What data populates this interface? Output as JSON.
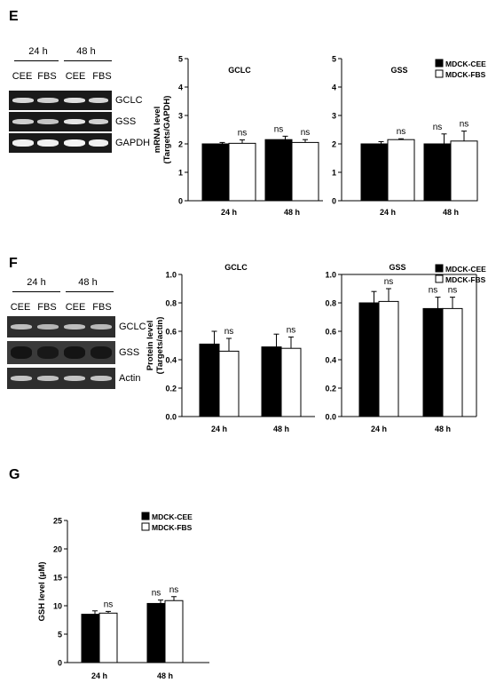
{
  "panels": {
    "E": {
      "letter": "E",
      "blot": {
        "times": [
          "24 h",
          "48 h"
        ],
        "conditions": [
          "CEE",
          "FBS",
          "CEE",
          "FBS"
        ],
        "rows": [
          "GCLC",
          "GSS",
          "GAPDH"
        ]
      }
    },
    "F": {
      "letter": "F",
      "blot": {
        "times": [
          "24 h",
          "48 h"
        ],
        "conditions": [
          "CEE",
          "FBS",
          "CEE",
          "FBS"
        ],
        "rows": [
          "GCLC",
          "GSS",
          "Actin"
        ]
      }
    },
    "G": {
      "letter": "G"
    }
  },
  "legend": {
    "cee": "MDCK-CEE",
    "fbs": "MDCK-FBS",
    "cee_color": "#000000",
    "fbs_color": "#ffffff"
  },
  "chart_data": [
    {
      "id": "E-GCLC",
      "type": "bar",
      "title": "GCLC",
      "ylabel": "mRNA level\n(Targets/GAPDH)",
      "ylim": [
        0,
        5
      ],
      "yticks": [
        "0",
        "1",
        "2",
        "3",
        "4",
        "5"
      ],
      "categories": [
        "24 h",
        "48 h"
      ],
      "series": [
        {
          "name": "MDCK-CEE",
          "values": [
            2.0,
            2.15
          ],
          "errors": [
            0.05,
            0.12
          ],
          "labels": [
            "",
            "ns"
          ]
        },
        {
          "name": "MDCK-FBS",
          "values": [
            2.02,
            2.05
          ],
          "errors": [
            0.12,
            0.1
          ],
          "labels": [
            "ns",
            "ns"
          ]
        }
      ]
    },
    {
      "id": "E-GSS",
      "type": "bar",
      "title": "GSS",
      "ylabel": "",
      "ylim": [
        0,
        5
      ],
      "yticks": [
        "0",
        "1",
        "2",
        "3",
        "4",
        "5"
      ],
      "categories": [
        "24 h",
        "48 h"
      ],
      "series": [
        {
          "name": "MDCK-CEE",
          "values": [
            2.0,
            2.0
          ],
          "errors": [
            0.08,
            0.35
          ],
          "labels": [
            "",
            "ns"
          ]
        },
        {
          "name": "MDCK-FBS",
          "values": [
            2.15,
            2.1
          ],
          "errors": [
            0.03,
            0.35
          ],
          "labels": [
            "ns",
            "ns"
          ]
        }
      ]
    },
    {
      "id": "F-GCLC",
      "type": "bar",
      "title": "GCLC",
      "ylabel": "Protein level\n(Targets/actin)",
      "ylim": [
        0,
        1.0
      ],
      "yticks": [
        "0.0",
        "0.2",
        "0.4",
        "0.6",
        "0.8",
        "1.0"
      ],
      "categories": [
        "24 h",
        "48 h"
      ],
      "series": [
        {
          "name": "MDCK-CEE",
          "values": [
            0.51,
            0.49
          ],
          "errors": [
            0.09,
            0.09
          ],
          "labels": [
            "",
            ""
          ]
        },
        {
          "name": "MDCK-FBS",
          "values": [
            0.46,
            0.48
          ],
          "errors": [
            0.09,
            0.08
          ],
          "labels": [
            "ns",
            "ns"
          ]
        }
      ]
    },
    {
      "id": "F-GSS",
      "type": "bar",
      "title": "GSS",
      "ylabel": "",
      "ylim": [
        0,
        1.0
      ],
      "yticks": [
        "0.0",
        "0.2",
        "0.4",
        "0.6",
        "0.8",
        "1.0"
      ],
      "categories": [
        "24 h",
        "48 h"
      ],
      "series": [
        {
          "name": "MDCK-CEE",
          "values": [
            0.8,
            0.76
          ],
          "errors": [
            0.08,
            0.08
          ],
          "labels": [
            "",
            "ns"
          ]
        },
        {
          "name": "MDCK-FBS",
          "values": [
            0.81,
            0.76
          ],
          "errors": [
            0.09,
            0.08
          ],
          "labels": [
            "ns",
            "ns"
          ]
        }
      ]
    },
    {
      "id": "G-GSH",
      "type": "bar",
      "title": "",
      "ylabel": "GSH level (μM)",
      "ylim": [
        0,
        25
      ],
      "yticks": [
        "0",
        "5",
        "10",
        "15",
        "20",
        "25"
      ],
      "categories": [
        "24 h",
        "48 h"
      ],
      "series": [
        {
          "name": "MDCK-CEE",
          "values": [
            8.5,
            10.4
          ],
          "errors": [
            0.6,
            0.6
          ],
          "labels": [
            "",
            "ns"
          ]
        },
        {
          "name": "MDCK-FBS",
          "values": [
            8.7,
            10.9
          ],
          "errors": [
            0.3,
            0.7
          ],
          "labels": [
            "ns",
            "ns"
          ]
        }
      ]
    }
  ]
}
